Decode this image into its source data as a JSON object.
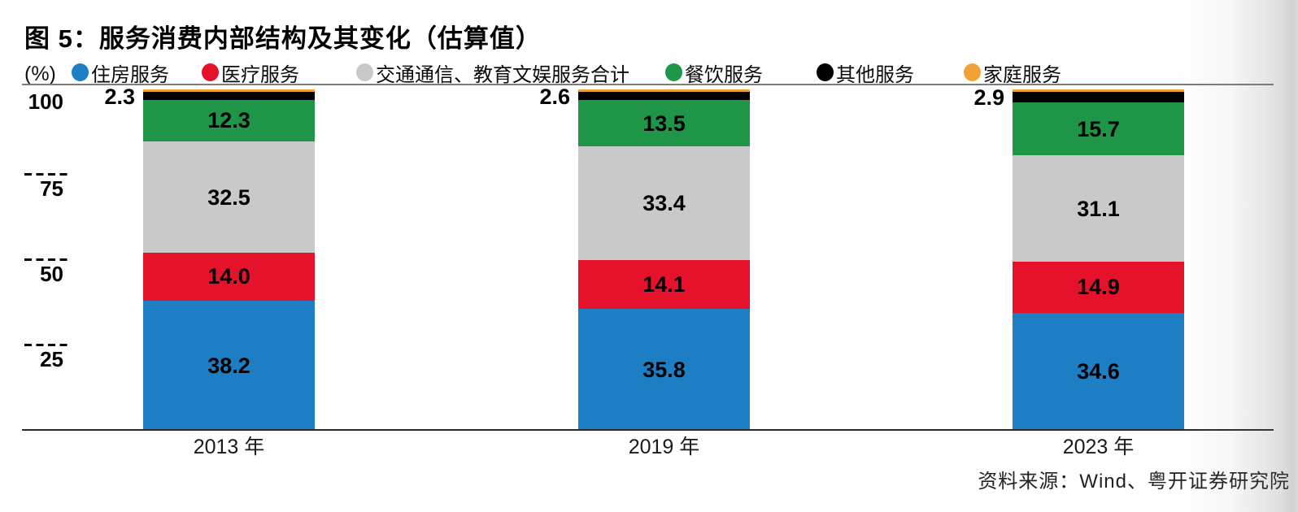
{
  "title": "图 5：服务消费内部结构及其变化（估算值）",
  "y_axis": {
    "unit_label": "(%)",
    "ticks": [
      100,
      75,
      50,
      25
    ]
  },
  "legend": [
    {
      "label": "住房服务",
      "color": "#1e7ec3"
    },
    {
      "label": "医疗服务",
      "color": "#e6112b"
    },
    {
      "label": "交通通信、教育文娱服务合计",
      "color": "#c9c9c9"
    },
    {
      "label": "餐饮服务",
      "color": "#1e9547"
    },
    {
      "label": "其他服务",
      "color": "#000000"
    },
    {
      "label": "家庭服务",
      "color": "#f1a233"
    }
  ],
  "chart_data": {
    "type": "bar",
    "stacked": true,
    "title": "图 5：服务消费内部结构及其变化（估算值）",
    "ylabel": "(%)",
    "ylim": [
      0,
      100
    ],
    "yticks": [
      25,
      50,
      75,
      100
    ],
    "grid": "dashed-ticks-left",
    "legend_position": "top",
    "categories": [
      "2013 年",
      "2019 年",
      "2023 年"
    ],
    "series": [
      {
        "name": "住房服务",
        "color": "#1e7ec3",
        "values": [
          38.2,
          35.8,
          34.6
        ],
        "value_labels": "inside"
      },
      {
        "name": "医疗服务",
        "color": "#e6112b",
        "values": [
          14.0,
          14.1,
          14.9
        ],
        "value_labels": "inside"
      },
      {
        "name": "交通通信、教育文娱服务合计",
        "color": "#c9c9c9",
        "values": [
          32.5,
          33.4,
          31.1
        ],
        "value_labels": "inside"
      },
      {
        "name": "餐饮服务",
        "color": "#1e9547",
        "values": [
          12.3,
          13.5,
          15.7
        ],
        "value_labels": "inside"
      },
      {
        "name": "其他服务",
        "color": "#000000",
        "values": [
          2.3,
          2.6,
          2.9
        ],
        "value_labels": "outside-left"
      },
      {
        "name": "家庭服务",
        "color": "#f1a233",
        "values": [
          0.7,
          0.6,
          0.8
        ],
        "value_labels": "none",
        "estimated_residual": true
      }
    ]
  },
  "source": "资料来源：Wind、粤开证券研究院"
}
